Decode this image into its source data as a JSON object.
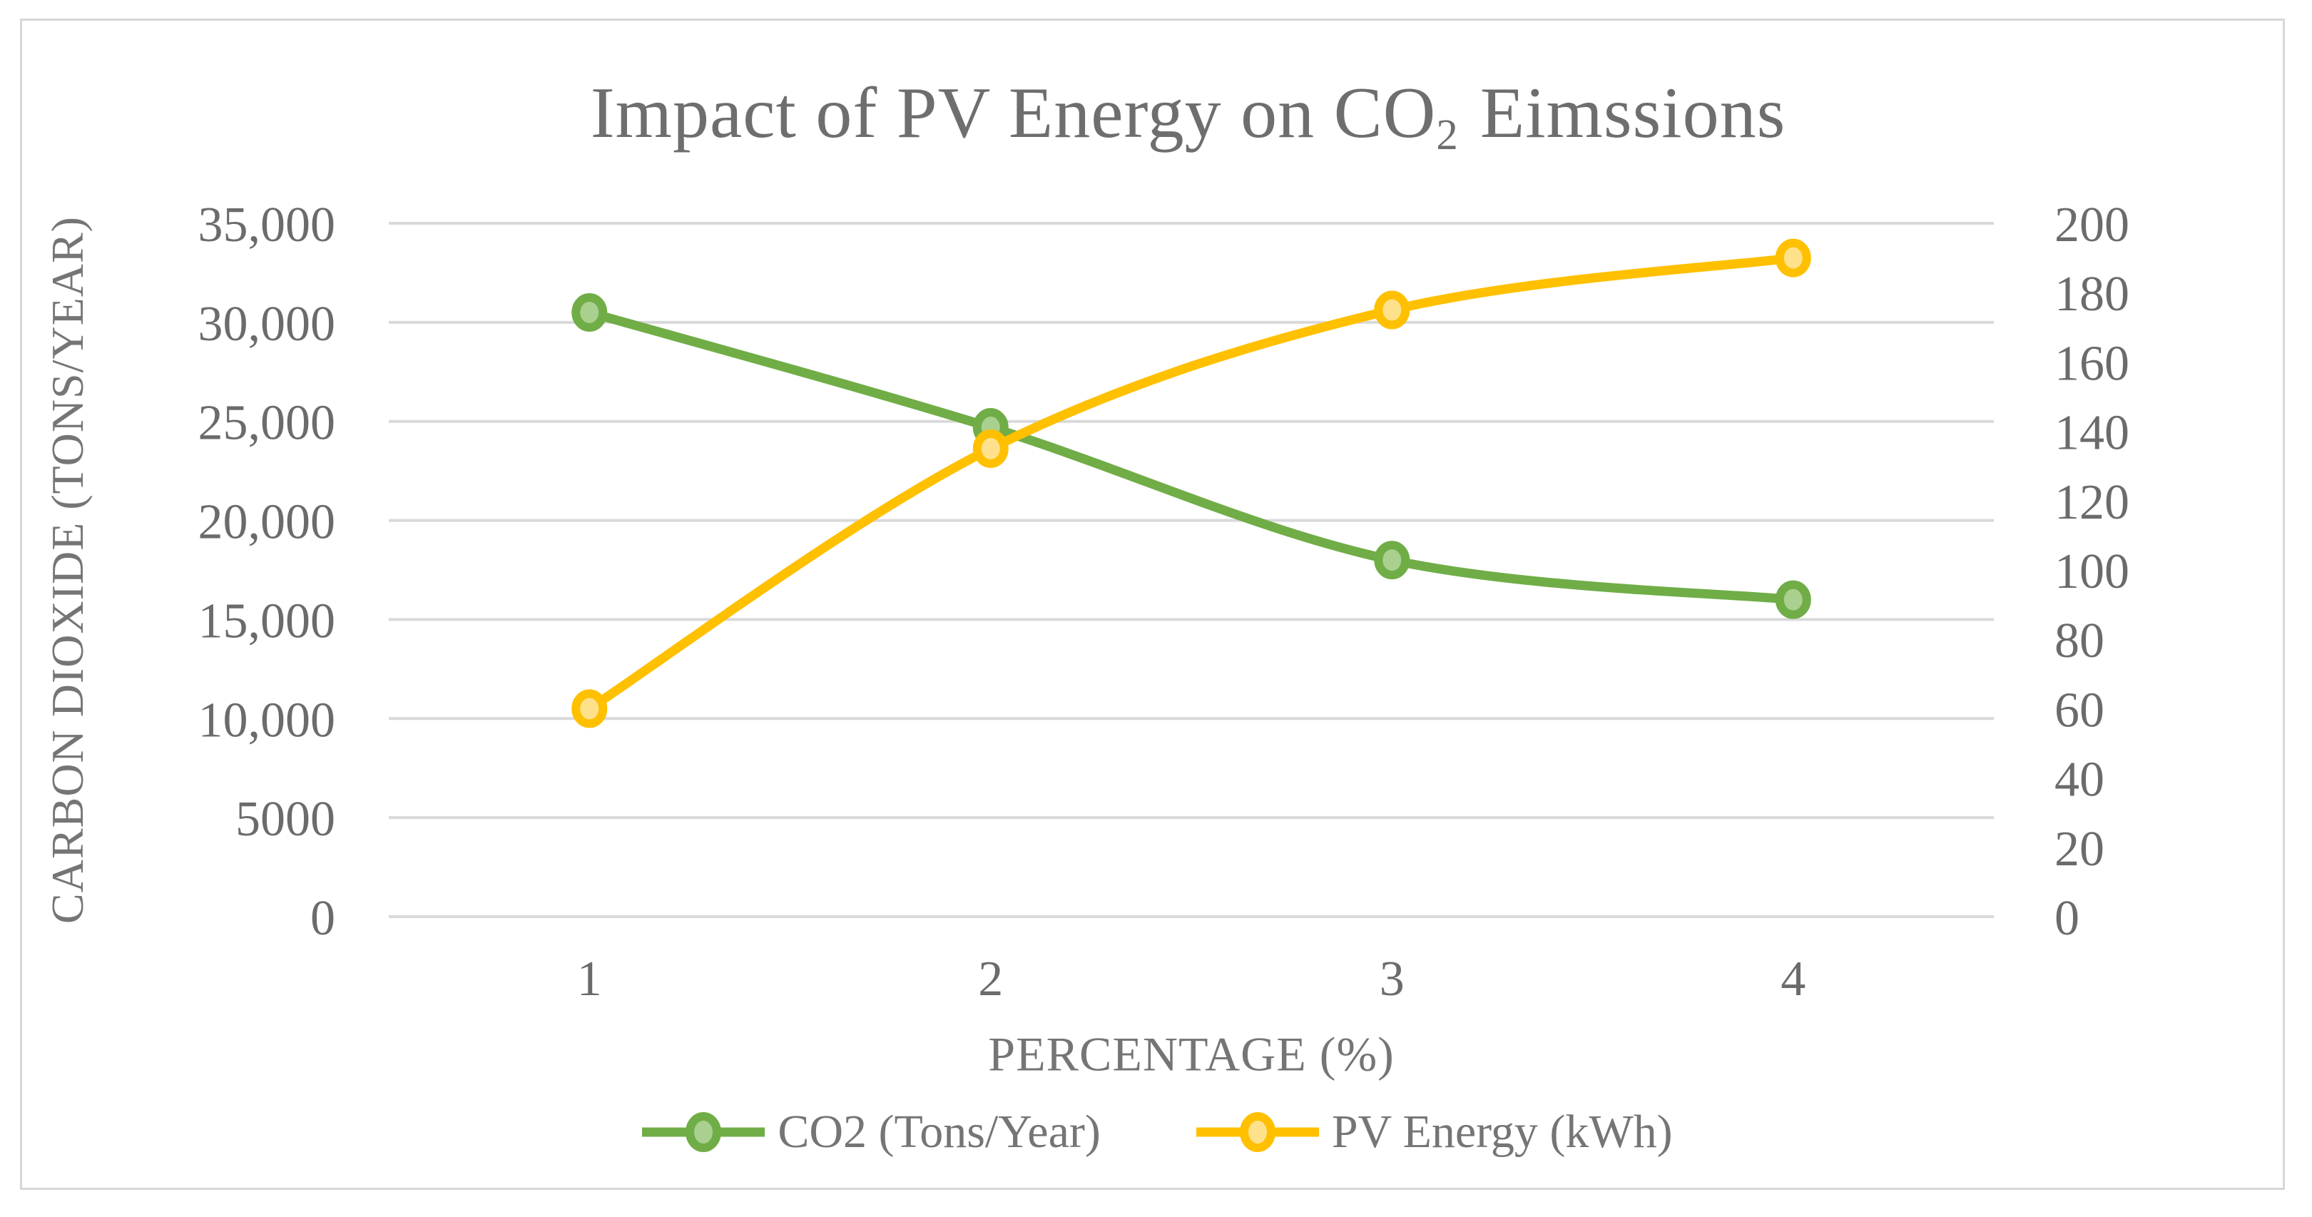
{
  "text": {
    "title_pre": "Impact of PV Energy on CO",
    "title_sub": "2",
    "title_post": "Eimssions"
  },
  "chart_data": {
    "type": "line",
    "title": "Impact of PV Energy on CO2 Eimssions",
    "xlabel": "PERCENTAGE (%)",
    "ylabel_left": "CARBON DIOXIDE (TONS/YEAR)",
    "categories": [
      1,
      2,
      3,
      4
    ],
    "x_tick_labels": [
      "1",
      "2",
      "3",
      "4"
    ],
    "left_ylim": [
      0,
      35000
    ],
    "right_ylim": [
      0,
      200
    ],
    "left_ticks": [
      0,
      5000,
      10000,
      15000,
      20000,
      25000,
      30000,
      35000
    ],
    "left_tick_labels": [
      "0",
      "5000",
      "10,000",
      "15,000",
      "20,000",
      "25,000",
      "30,000",
      "35,000"
    ],
    "right_ticks": [
      0,
      20,
      40,
      60,
      80,
      100,
      120,
      140,
      160,
      180,
      200
    ],
    "right_tick_labels": [
      "0",
      "20",
      "40",
      "60",
      "80",
      "100",
      "120",
      "140",
      "160",
      "180",
      "200"
    ],
    "grid": true,
    "smooth": true,
    "legend_position": "bottom",
    "colors": {
      "gridline": "#d9d9d9",
      "text": "#6b6b6b"
    },
    "series": [
      {
        "name": "CO2 (Tons/Year)",
        "axis": "left",
        "color": "#70AD47",
        "marker_fill": "#A9D08E",
        "values": [
          30500,
          24700,
          18000,
          16000
        ]
      },
      {
        "name": "PV Energy (kWh)",
        "axis": "right",
        "color": "#FFC000",
        "marker_fill": "#FFE18C",
        "values": [
          60,
          135,
          175,
          190
        ]
      }
    ]
  }
}
